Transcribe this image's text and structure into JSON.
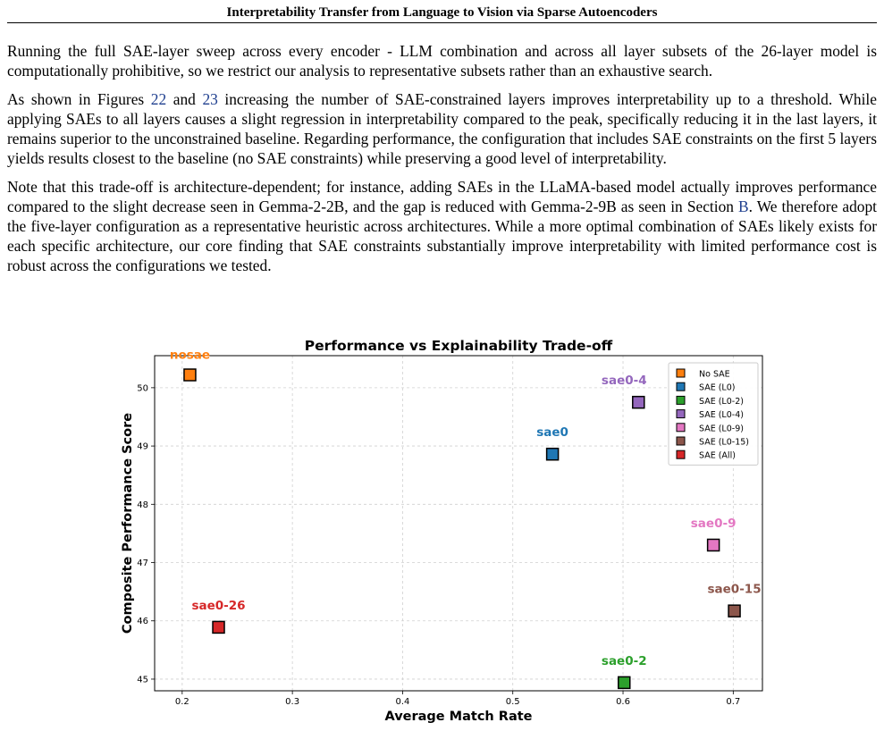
{
  "header": {
    "title": "Interpretability Transfer from Language to Vision via Sparse Autoencoders"
  },
  "paragraphs": {
    "p1": "Running the full SAE-layer sweep across every encoder - LLM combination and across all layer subsets of the 26-layer model is computationally prohibitive, so we restrict our analysis to representative subsets rather than an exhaustive search.",
    "p2_a": "As shown in Figures ",
    "p2_ref1": "22",
    "p2_b": " and ",
    "p2_ref2": "23",
    "p2_c": " increasing the number of SAE-constrained layers improves interpretability up to a threshold. While applying SAEs to all layers causes a slight regression in interpretability compared to the peak, specifically reducing it in the last layers, it remains superior to the unconstrained baseline. Regarding performance, the configuration that includes SAE constraints on the first 5 layers yields results closest to the baseline (no SAE constraints) while preserving a good level of interpretability.",
    "p3_a": "Note that this trade-off is architecture-dependent; for instance, adding SAEs in the LLaMA-based model actually improves performance compared to the slight decrease seen in Gemma-2-2B, and the gap is reduced with Gemma-2-9B as seen in Section ",
    "p3_ref": "B",
    "p3_b": ". We therefore adopt the five-layer configuration as a representative heuristic across architectures. While a more optimal combination of SAEs likely exists for each specific architecture, our core finding that SAE constraints substantially improve interpretability with limited performance cost is robust across the configurations we tested."
  },
  "chart_data": {
    "type": "scatter",
    "title": "Performance vs Explainability Trade-off",
    "xlabel": "Average Match Rate",
    "ylabel": "Composite Performance Score",
    "xlim": [
      0.175,
      0.7265
    ],
    "ylim": [
      44.8,
      50.55
    ],
    "xticks": [
      0.2,
      0.3,
      0.4,
      0.5,
      0.6,
      0.7
    ],
    "xtick_labels": [
      "0.2",
      "0.3",
      "0.4",
      "0.5",
      "0.6",
      "0.7"
    ],
    "yticks": [
      45,
      46,
      47,
      48,
      49,
      50
    ],
    "ytick_labels": [
      "45",
      "46",
      "47",
      "48",
      "49",
      "50"
    ],
    "grid": true,
    "legend_position": "top-right",
    "series": [
      {
        "name": "No SAE",
        "label": "nosae",
        "color": "#ff7f0e",
        "x": 0.207,
        "y": 50.22
      },
      {
        "name": "SAE (L0)",
        "label": "sae0",
        "color": "#1f77b4",
        "x": 0.536,
        "y": 48.86
      },
      {
        "name": "SAE (L0-2)",
        "label": "sae0-2",
        "color": "#2ca02c",
        "x": 0.601,
        "y": 44.94
      },
      {
        "name": "SAE (L0-4)",
        "label": "sae0-4",
        "color": "#9467bd",
        "x": 0.614,
        "y": 49.75
      },
      {
        "name": "SAE (L0-9)",
        "label": "sae0-9",
        "color": "#e377c2",
        "x": 0.682,
        "y": 47.3
      },
      {
        "name": "SAE (L0-15)",
        "label": "sae0-15",
        "color": "#8c564b",
        "x": 0.701,
        "y": 46.17
      },
      {
        "name": "SAE (All)",
        "label": "sae0-26",
        "color": "#d62728",
        "x": 0.233,
        "y": 45.89
      }
    ]
  }
}
